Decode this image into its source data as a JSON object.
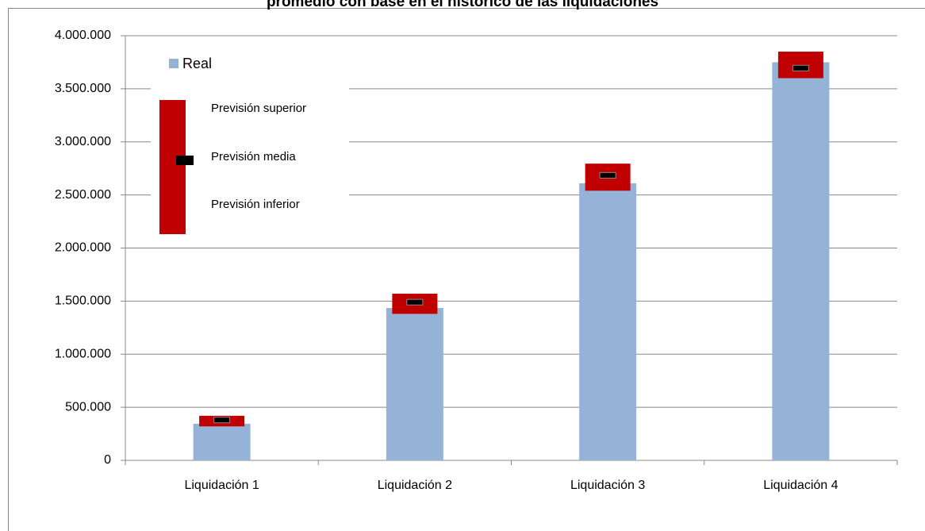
{
  "chart_data": {
    "type": "bar",
    "title": "promedio con base en el histórico de las liquidaciones",
    "categories": [
      "Liquidación 1",
      "Liquidación 2",
      "Liquidación 3",
      "Liquidación 4"
    ],
    "series": [
      {
        "name": "Real",
        "color": "#95b3d7",
        "values": [
          345000,
          1435000,
          2610000,
          3750000
        ]
      },
      {
        "name": "Previsión superior",
        "color": "#c00000",
        "values": [
          420000,
          1570000,
          2795000,
          3850000
        ]
      },
      {
        "name": "Previsión media",
        "color": "#000000",
        "values": [
          380000,
          1490000,
          2685000,
          3695000
        ]
      },
      {
        "name": "Previsión inferior",
        "color": "#c00000",
        "values": [
          320000,
          1380000,
          2540000,
          3600000
        ]
      }
    ],
    "ylim": [
      0,
      4000000
    ],
    "yticks": [
      0,
      {
        "value": 500000,
        "label": "500.000"
      },
      {
        "value": 1000000,
        "label": "1.000.000"
      },
      {
        "value": 1500000,
        "label": "1.500.000"
      },
      {
        "value": 2000000,
        "label": "2.000.000"
      },
      {
        "value": 2500000,
        "label": "2.500.000"
      },
      {
        "value": 3000000,
        "label": "3.000.000"
      },
      {
        "value": 3500000,
        "label": "3.500.000"
      },
      {
        "value": 4000000,
        "label": "4.000.000"
      }
    ],
    "grid": true
  }
}
